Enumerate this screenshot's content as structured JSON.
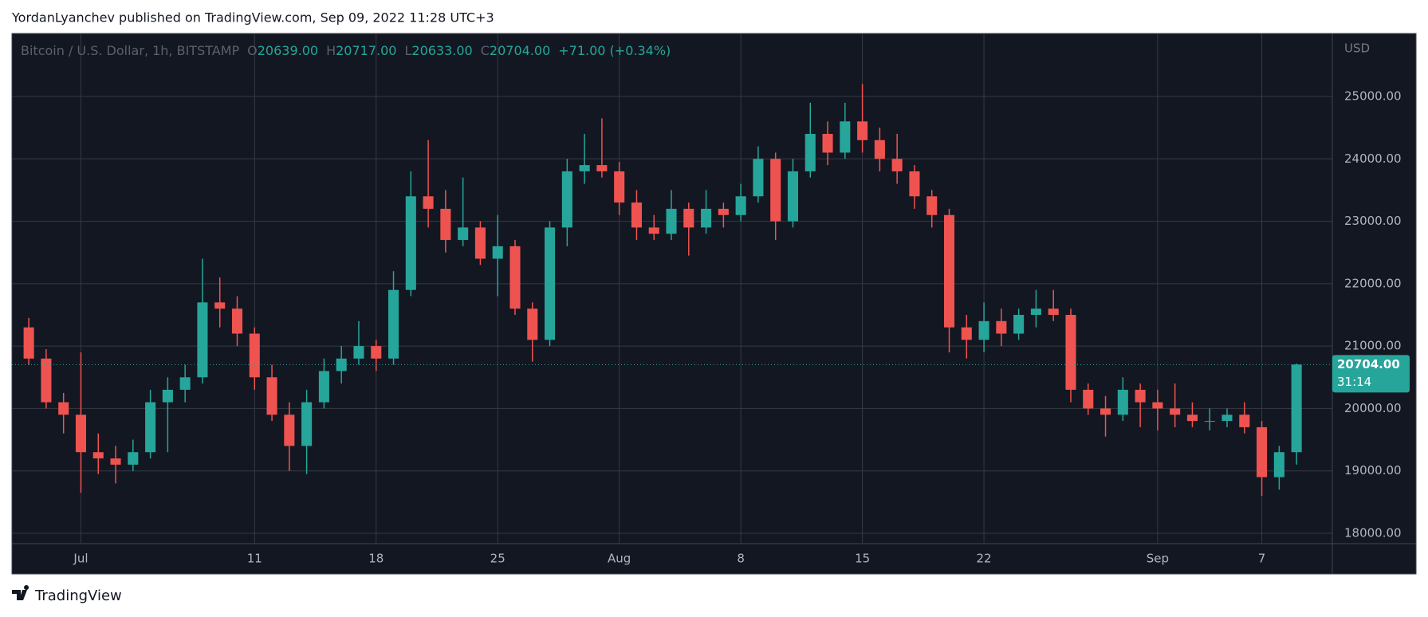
{
  "header": {
    "byline": "YordanLyanchev published on TradingView.com, Sep 09, 2022 11:28 UTC+3"
  },
  "chart_data": {
    "type": "candlestick",
    "title": "Bitcoin / U.S. Dollar, 1h, BITSTAMP",
    "ohlc_legend": [
      {
        "key": "O",
        "value": "20639.00"
      },
      {
        "key": "H",
        "value": "20717.00"
      },
      {
        "key": "L",
        "value": "20633.00"
      },
      {
        "key": "C",
        "value": "20704.00"
      }
    ],
    "change": "+71.00 (+0.34%)",
    "y_axis_label": "USD",
    "up_color": "#26a69a",
    "down_color": "#ef5350",
    "grid": true,
    "x": [
      -3,
      -2,
      -1,
      0,
      1,
      2,
      3,
      4,
      5,
      6,
      7,
      8,
      9,
      10,
      11,
      12,
      13,
      14,
      15,
      16,
      17,
      18,
      19,
      20,
      21,
      22,
      23,
      24,
      25,
      26,
      27,
      28,
      29,
      30,
      31,
      32,
      33,
      34,
      35,
      36,
      37,
      38,
      39,
      40,
      41,
      42,
      43,
      44,
      45,
      46,
      47,
      48,
      49,
      50,
      51,
      52,
      53,
      54,
      55,
      56,
      57,
      58,
      59,
      60,
      61,
      62,
      63,
      64,
      65,
      66,
      67,
      68,
      69,
      70
    ],
    "open": [
      21300,
      20800,
      20100,
      19900,
      19300,
      19200,
      19100,
      19300,
      20100,
      20300,
      20500,
      21700,
      21600,
      21200,
      20500,
      19900,
      19400,
      20100,
      20600,
      20800,
      21000,
      20800,
      21900,
      23400,
      23200,
      22700,
      22900,
      22400,
      22600,
      21600,
      21100,
      22900,
      23800,
      23900,
      23800,
      23300,
      22900,
      22800,
      23200,
      22900,
      23200,
      23100,
      23400,
      24000,
      23000,
      23800,
      24400,
      24100,
      24600,
      24300,
      24000,
      23800,
      23400,
      23100,
      21300,
      21100,
      21400,
      21200,
      21500,
      21600,
      21500,
      20300,
      20000,
      19900,
      20300,
      20100,
      20000,
      19900,
      19800,
      19800,
      19900,
      19700,
      18900,
      19300
    ],
    "high": [
      21450,
      20950,
      20250,
      20900,
      19600,
      19400,
      19500,
      20300,
      20500,
      20700,
      22400,
      22100,
      21800,
      21300,
      20700,
      20100,
      20300,
      20800,
      21000,
      21400,
      21100,
      22200,
      23800,
      24300,
      23500,
      23700,
      23000,
      23100,
      22700,
      21700,
      23000,
      24000,
      24400,
      24650,
      23950,
      23500,
      23100,
      23500,
      23300,
      23500,
      23300,
      23600,
      24200,
      24100,
      24000,
      24900,
      24600,
      24900,
      25200,
      24500,
      24400,
      23900,
      23500,
      23200,
      21500,
      21700,
      21600,
      21600,
      21900,
      21900,
      21600,
      20400,
      20200,
      20500,
      20400,
      20300,
      20400,
      20100,
      20000,
      20000,
      20100,
      19800,
      19400,
      20720
    ],
    "low": [
      20700,
      20000,
      19600,
      18650,
      18950,
      18800,
      19000,
      19200,
      19300,
      20100,
      20400,
      21300,
      21000,
      20300,
      19800,
      19000,
      18950,
      20000,
      20400,
      20700,
      20600,
      20700,
      21800,
      22900,
      22500,
      22600,
      22300,
      21800,
      21500,
      20750,
      21000,
      22600,
      23600,
      23700,
      23100,
      22700,
      22700,
      22700,
      22450,
      22800,
      22900,
      23000,
      23300,
      22700,
      22900,
      23700,
      23900,
      24000,
      24100,
      23800,
      23600,
      23200,
      22900,
      20900,
      20800,
      20900,
      21000,
      21100,
      21300,
      21400,
      20100,
      19900,
      19550,
      19800,
      19700,
      19650,
      19700,
      19700,
      19650,
      19700,
      19600,
      18600,
      18700,
      19100
    ],
    "close": [
      20800,
      20100,
      19900,
      19300,
      19200,
      19100,
      19300,
      20100,
      20300,
      20500,
      21700,
      21600,
      21200,
      20500,
      19900,
      19400,
      20100,
      20600,
      20800,
      21000,
      20800,
      21900,
      23400,
      23200,
      22700,
      22900,
      22400,
      22600,
      21600,
      21100,
      22900,
      23800,
      23900,
      23800,
      23300,
      22900,
      22800,
      23200,
      22900,
      23200,
      23100,
      23400,
      24000,
      23000,
      23800,
      24400,
      24100,
      24600,
      24300,
      24000,
      23800,
      23400,
      23100,
      21300,
      21100,
      21400,
      21200,
      21500,
      21600,
      21500,
      20300,
      20000,
      19900,
      20300,
      20100,
      20000,
      19900,
      19800,
      19800,
      19900,
      19700,
      18900,
      19300,
      20704
    ],
    "xlim": [
      -3.97,
      72.06
    ],
    "xticks": [
      {
        "value": 0,
        "label": "Jul"
      },
      {
        "value": 10,
        "label": "11"
      },
      {
        "value": 17,
        "label": "18"
      },
      {
        "value": 24,
        "label": "25"
      },
      {
        "value": 31,
        "label": "Aug"
      },
      {
        "value": 38,
        "label": "8"
      },
      {
        "value": 45,
        "label": "15"
      },
      {
        "value": 52,
        "label": "22"
      },
      {
        "value": 62,
        "label": "Sep"
      },
      {
        "value": 68,
        "label": "7"
      }
    ],
    "ylim": [
      17834,
      26009
    ],
    "yticks": [
      {
        "value": 18000,
        "label": "18000.00"
      },
      {
        "value": 19000,
        "label": "19000.00"
      },
      {
        "value": 20000,
        "label": "20000.00"
      },
      {
        "value": 21000,
        "label": "21000.00"
      },
      {
        "value": 22000,
        "label": "22000.00"
      },
      {
        "value": 23000,
        "label": "23000.00"
      },
      {
        "value": 24000,
        "label": "24000.00"
      },
      {
        "value": 25000,
        "label": "25000.00"
      }
    ],
    "last_price": {
      "value": 20704,
      "label": "20704.00"
    },
    "countdown": "31:14"
  },
  "footer": {
    "brand": "TradingView"
  }
}
